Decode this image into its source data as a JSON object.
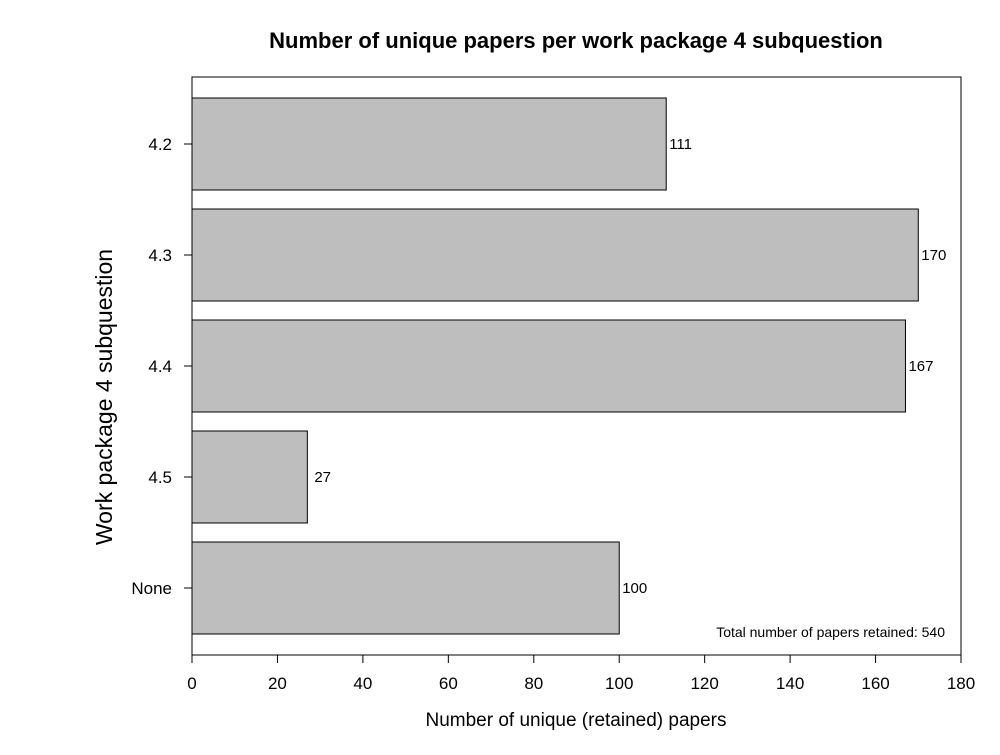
{
  "chart_data": {
    "type": "bar",
    "orientation": "horizontal",
    "title": "Number of unique papers per work package 4 subquestion",
    "xlabel": "Number of unique (retained) papers",
    "ylabel": "Work package 4 subquestion",
    "categories": [
      "4.2",
      "4.3",
      "4.4",
      "4.5",
      "None"
    ],
    "values": [
      111,
      170,
      167,
      27,
      100
    ],
    "data_labels": [
      "111",
      "170",
      "167",
      "27",
      "100"
    ],
    "xlim": [
      0,
      180
    ],
    "xticks": [
      0,
      20,
      40,
      60,
      80,
      100,
      120,
      140,
      160,
      180
    ],
    "xtick_labels": [
      "0",
      "20",
      "40",
      "60",
      "80",
      "100",
      "120",
      "140",
      "160",
      "180"
    ],
    "annotation": "Total number of papers retained: 540",
    "grid": false,
    "legend": "none",
    "bar_fill": "#bebebe",
    "bar_stroke": "#000000"
  }
}
